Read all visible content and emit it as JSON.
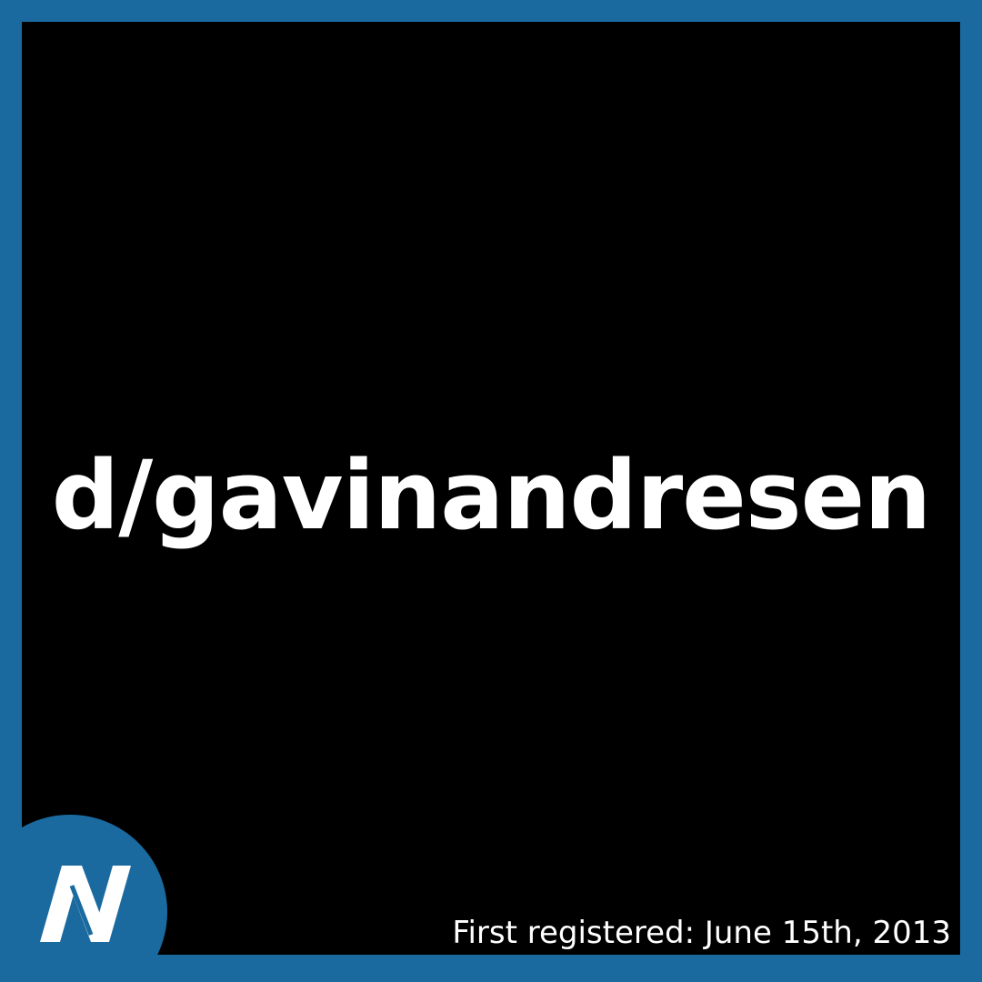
{
  "card": {
    "domain_name": "d/gavinandresen",
    "registered_text": "First registered: June 15th, 2013",
    "logo": "namecoin-n-logo"
  },
  "colors": {
    "frame": "#1a6aa0",
    "background": "#000000",
    "text": "#ffffff"
  }
}
